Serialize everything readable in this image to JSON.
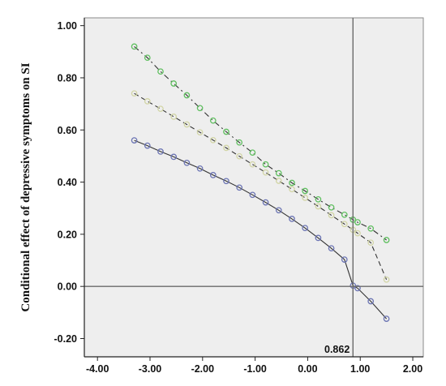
{
  "chart_data": {
    "type": "line",
    "title": "",
    "xlabel": "",
    "ylabel": "Conditional effect of depressive symptoms on SI",
    "xlim": [
      -4.25,
      2.2
    ],
    "ylim": [
      -0.27,
      1.03
    ],
    "x_ticks": [
      "-4.00",
      "-3.00",
      "-2.00",
      "-1.00",
      "0.00",
      "1.00",
      "2.00"
    ],
    "y_ticks": [
      "-0.20",
      "0.00",
      "0.20",
      "0.40",
      "0.60",
      "0.80",
      "1.00"
    ],
    "grid": false,
    "legend": "none",
    "reference_lines": {
      "x": 0.862,
      "y": 0.0
    },
    "annotation": {
      "text": "0.862",
      "x": 0.862
    },
    "colors": {
      "plot_background": "#eeeeee",
      "series_upper": "#5fbf5f",
      "series_middle": "#d2d5a6",
      "series_lower": "#6b74b3",
      "line_dark": "#333333"
    },
    "series": [
      {
        "style": "dash-dot",
        "color": "#5fbf5f",
        "x": [
          -3.3,
          -3.05,
          -2.8,
          -2.55,
          -2.3,
          -2.05,
          -1.8,
          -1.55,
          -1.3,
          -1.05,
          -0.8,
          -0.55,
          -0.3,
          -0.05,
          0.2,
          0.45,
          0.7,
          0.862,
          0.95,
          1.2,
          1.5
        ],
        "y": [
          0.92,
          0.877,
          0.824,
          0.778,
          0.733,
          0.684,
          0.636,
          0.593,
          0.552,
          0.513,
          0.468,
          0.434,
          0.397,
          0.366,
          0.334,
          0.303,
          0.275,
          0.256,
          0.246,
          0.222,
          0.178
        ]
      },
      {
        "style": "dashed",
        "color": "#d2d5a6",
        "x": [
          -3.3,
          -3.05,
          -2.8,
          -2.55,
          -2.3,
          -2.05,
          -1.8,
          -1.55,
          -1.3,
          -1.05,
          -0.8,
          -0.55,
          -0.3,
          -0.05,
          0.2,
          0.45,
          0.7,
          0.862,
          0.95,
          1.2,
          1.5
        ],
        "y": [
          0.74,
          0.71,
          0.681,
          0.651,
          0.621,
          0.591,
          0.561,
          0.531,
          0.499,
          0.468,
          0.437,
          0.405,
          0.373,
          0.34,
          0.307,
          0.273,
          0.239,
          0.217,
          0.204,
          0.168,
          0.026
        ]
      },
      {
        "style": "solid",
        "color": "#6b74b3",
        "x": [
          -3.3,
          -3.05,
          -2.8,
          -2.55,
          -2.3,
          -2.05,
          -1.8,
          -1.55,
          -1.3,
          -1.05,
          -0.8,
          -0.55,
          -0.3,
          -0.05,
          0.2,
          0.45,
          0.7,
          0.862,
          0.95,
          1.2,
          1.5
        ],
        "y": [
          0.56,
          0.54,
          0.517,
          0.497,
          0.474,
          0.452,
          0.427,
          0.404,
          0.379,
          0.351,
          0.322,
          0.292,
          0.259,
          0.224,
          0.186,
          0.146,
          0.103,
          0.003,
          -0.007,
          -0.057,
          -0.124
        ]
      }
    ]
  }
}
